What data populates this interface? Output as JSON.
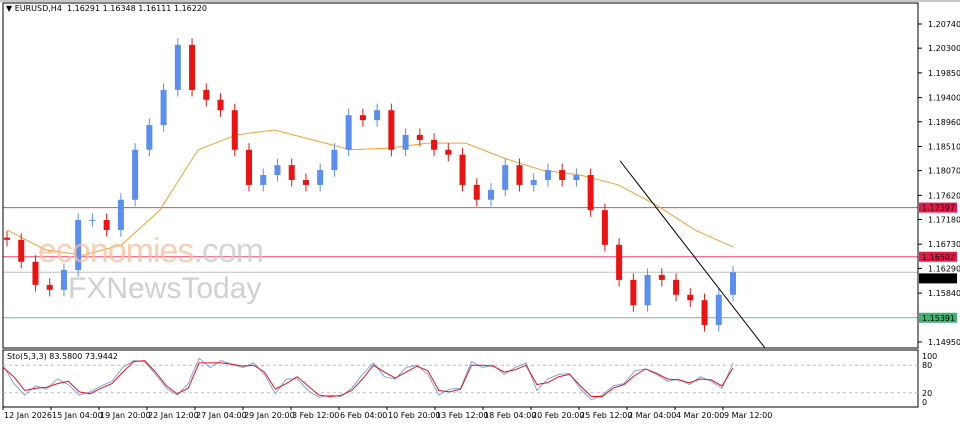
{
  "header": {
    "arrow": "▼",
    "symbol": "EURUSD,H4",
    "open": "1.16291",
    "high": "1.16348",
    "low": "1.16111",
    "close": "1.16220"
  },
  "watermark": {
    "part1": "economies",
    "part2": ".com",
    "part3": "FXNewsToday"
  },
  "chart_data": {
    "type": "candlestick",
    "symbol": "EURUSD",
    "timeframe": "H4",
    "price_axis": {
      "ticks": [
        "1.20740",
        "1.20300",
        "1.19850",
        "1.19400",
        "1.18960",
        "1.18510",
        "1.18070",
        "1.17620",
        "1.17180",
        "1.16730",
        "1.16290",
        "1.15840",
        "1.14950"
      ],
      "range": [
        1.1495,
        1.2074
      ]
    },
    "time_axis": [
      "12 Jan 2026",
      "15 Jan 04:00",
      "19 Jan 20:00",
      "22 Jan 12:00",
      "27 Jan 04:00",
      "29 Jan 20:00",
      "3 Feb 12:00",
      "6 Feb 04:00",
      "10 Feb 20:00",
      "13 Feb 12:00",
      "18 Feb 04:00",
      "20 Feb 20:00",
      "25 Feb 12:00",
      "2 Mar 04:00",
      "4 Mar 20:00",
      "9 Mar 12:00"
    ],
    "closes": [
      1.1681,
      1.1641,
      1.1599,
      1.159,
      1.1626,
      1.1717,
      1.1717,
      1.1699,
      1.1754,
      1.1845,
      1.189,
      1.1954,
      1.2036,
      1.1954,
      1.1936,
      1.1917,
      1.1845,
      1.1781,
      1.1799,
      1.1817,
      1.179,
      1.1781,
      1.1808,
      1.1845,
      1.1908,
      1.1899,
      1.1917,
      1.1845,
      1.1872,
      1.1863,
      1.1845,
      1.1836,
      1.1781,
      1.1754,
      1.1772,
      1.1817,
      1.1781,
      1.179,
      1.1808,
      1.179,
      1.1799,
      1.1735,
      1.1672,
      1.1608,
      1.1562,
      1.1617,
      1.1608,
      1.1581,
      1.1571,
      1.1526,
      1.1581,
      1.1622
    ],
    "moving_average": [
      1.1699,
      1.1663,
      1.1653,
      1.1672,
      1.1735,
      1.1845,
      1.1872,
      1.1881,
      1.1863,
      1.1845,
      1.1848,
      1.1857,
      1.1857,
      1.183,
      1.1808,
      1.1799,
      1.1781,
      1.1744,
      1.1699,
      1.1668
    ],
    "trendline": {
      "from_price": 1.1825,
      "to_price": 1.148
    },
    "levels": [
      {
        "price": "1.17397",
        "color": "#e8174a"
      },
      {
        "price": "1.16502",
        "color": "#e8174a"
      },
      {
        "price": "1.16220",
        "color": "#000000",
        "line": "#c0c0c0"
      },
      {
        "price": "1.15391",
        "color": "#3cb371"
      }
    ],
    "colors": {
      "bull": "#5a8ef0",
      "bear": "#ee1111",
      "ma": "#f7a030",
      "stoch_main": "#7aa6f0",
      "stoch_signal": "#ee1111"
    },
    "stochastic": {
      "label": "Sto(5,3,3) 83.5800 73.9442",
      "axis": [
        "100",
        "80",
        "20",
        "0"
      ],
      "levels": [
        80,
        20
      ],
      "main": [
        80,
        40,
        15,
        35,
        28,
        50,
        38,
        15,
        22,
        35,
        45,
        75,
        90,
        88,
        60,
        30,
        15,
        40,
        95,
        75,
        90,
        82,
        75,
        85,
        60,
        18,
        50,
        50,
        25,
        10,
        15,
        12,
        30,
        60,
        85,
        55,
        50,
        75,
        80,
        60,
        15,
        28,
        30,
        88,
        75,
        80,
        60,
        75,
        85,
        25,
        50,
        60,
        62,
        28,
        5,
        15,
        35,
        40,
        68,
        72,
        60,
        45,
        50,
        38,
        55,
        45,
        30,
        85
      ],
      "signal": [
        75,
        55,
        25,
        30,
        32,
        40,
        45,
        22,
        18,
        30,
        40,
        65,
        88,
        90,
        65,
        35,
        18,
        30,
        85,
        85,
        85,
        82,
        78,
        80,
        65,
        28,
        40,
        55,
        35,
        15,
        12,
        14,
        25,
        50,
        80,
        65,
        52,
        65,
        78,
        68,
        25,
        22,
        28,
        80,
        80,
        78,
        65,
        70,
        80,
        38,
        42,
        55,
        60,
        35,
        12,
        12,
        30,
        38,
        58,
        72,
        62,
        50,
        48,
        42,
        50,
        48,
        35,
        74
      ]
    }
  }
}
